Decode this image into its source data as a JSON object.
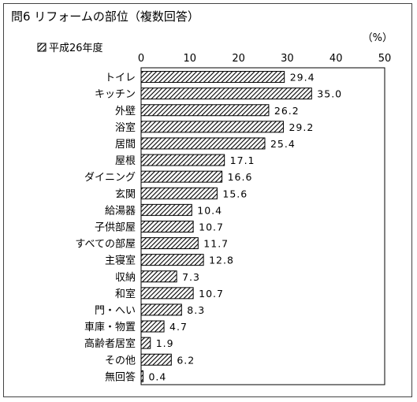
{
  "chart_data": {
    "type": "bar",
    "orientation": "horizontal",
    "title": "問6 リフォームの部位（複数回答）",
    "unit_label": "（%）",
    "legend": {
      "label": "平成26年度",
      "placement": "top-left"
    },
    "xlim": [
      0,
      50
    ],
    "ticks": [
      0,
      10,
      20,
      30,
      40,
      50
    ],
    "grid": false,
    "series": [
      {
        "name": "平成26年度",
        "pattern": "diagonal-hatch",
        "value_labels": [
          "29.4",
          "35.0",
          "26.2",
          "29.2",
          "25.4",
          "17.1",
          "16.6",
          "15.6",
          "10.4",
          "10.7",
          "11.7",
          "12.8",
          "7.3",
          "10.7",
          "8.3",
          "4.7",
          "1.9",
          "6.2",
          "0.4"
        ]
      }
    ],
    "categories": [
      "トイレ",
      "キッチン",
      "外壁",
      "浴室",
      "居間",
      "屋根",
      "ダイニング",
      "玄関",
      "給湯器",
      "子供部屋",
      "すべての部屋",
      "主寝室",
      "収納",
      "和室",
      "門・へい",
      "車庫・物置",
      "高齢者居室",
      "その他",
      "無回答"
    ],
    "values": [
      29.4,
      35.0,
      26.2,
      29.2,
      25.4,
      17.1,
      16.6,
      15.6,
      10.4,
      10.7,
      11.7,
      12.8,
      7.3,
      10.7,
      8.3,
      4.7,
      1.9,
      6.2,
      0.4
    ]
  }
}
